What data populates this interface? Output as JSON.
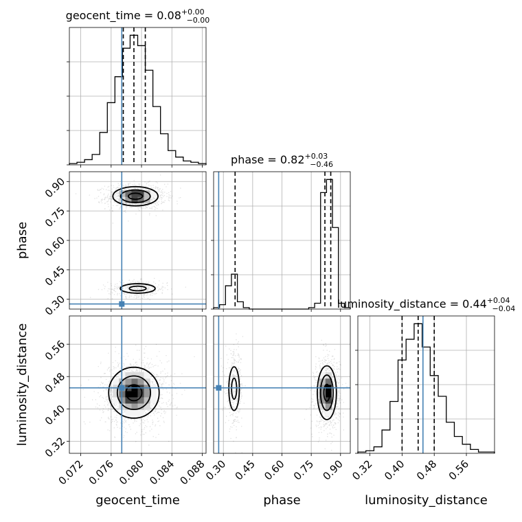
{
  "chart_data": {
    "type": "corner",
    "parameters": [
      {
        "name": "geocent_time",
        "title": "geocent_time = 0.08",
        "title_upper": "+0.00",
        "title_lower": "−0.00",
        "median": 0.079,
        "quantiles": [
          0.0776,
          0.079,
          0.0805
        ],
        "truth": 0.0774,
        "range": [
          0.0705,
          0.0885
        ],
        "ticks": [
          0.072,
          0.076,
          0.08,
          0.084,
          0.088
        ],
        "tick_labels": [
          "0.072",
          "0.076",
          "0.080",
          "0.084",
          "0.088"
        ],
        "hist": [
          1,
          2,
          4,
          8,
          25,
          48,
          68,
          90,
          100,
          92,
          73,
          45,
          24,
          11,
          6,
          3,
          2,
          1
        ]
      },
      {
        "name": "phase",
        "title": "phase = 0.82",
        "title_upper": "+0.03",
        "title_lower": "−0.46",
        "median": 0.82,
        "quantiles": [
          0.36,
          0.82,
          0.85
        ],
        "truth": 0.276,
        "range": [
          0.25,
          0.95
        ],
        "ticks": [
          0.3,
          0.45,
          0.6,
          0.75,
          0.9
        ],
        "tick_labels": [
          "0.30",
          "0.45",
          "0.60",
          "0.75",
          "0.90"
        ],
        "hist": [
          1,
          3,
          16,
          24,
          5,
          1,
          0,
          0,
          0,
          0,
          0,
          0,
          0,
          0,
          0,
          0,
          1,
          4,
          80,
          89,
          56,
          4,
          1
        ]
      },
      {
        "name": "luminosity_distance",
        "title": "luminosity_distance = 0.44",
        "title_upper": "+0.04",
        "title_lower": "−0.04",
        "median": 0.44,
        "quantiles": [
          0.4,
          0.44,
          0.48
        ],
        "truth": 0.452,
        "range": [
          0.29,
          0.63
        ],
        "ticks": [
          0.32,
          0.4,
          0.48,
          0.56
        ],
        "tick_labels": [
          "0.32",
          "0.40",
          "0.48",
          "0.56"
        ],
        "hist": [
          1,
          2,
          5,
          18,
          40,
          72,
          88,
          100,
          82,
          60,
          44,
          24,
          13,
          7,
          3,
          1,
          1
        ]
      }
    ],
    "blobs_2d": [
      {
        "x_param": "geocent_time",
        "y_param": "phase",
        "modes": [
          {
            "cx": 0.0792,
            "cy": 0.825,
            "sx": 0.0017,
            "sy": 0.028,
            "w": 1.0
          },
          {
            "cx": 0.0795,
            "cy": 0.355,
            "sx": 0.0017,
            "sy": 0.018,
            "w": 0.33
          }
        ]
      },
      {
        "x_param": "geocent_time",
        "y_param": "luminosity_distance",
        "modes": [
          {
            "cx": 0.079,
            "cy": 0.44,
            "sx": 0.0019,
            "sy": 0.036,
            "w": 1.0
          }
        ]
      },
      {
        "x_param": "phase",
        "y_param": "luminosity_distance",
        "modes": [
          {
            "cx": 0.355,
            "cy": 0.45,
            "sx": 0.02,
            "sy": 0.04,
            "w": 0.35
          },
          {
            "cx": 0.83,
            "cy": 0.44,
            "sx": 0.028,
            "sy": 0.038,
            "w": 1.0
          }
        ]
      }
    ],
    "truth_color": "#4682b4",
    "grid": true
  }
}
